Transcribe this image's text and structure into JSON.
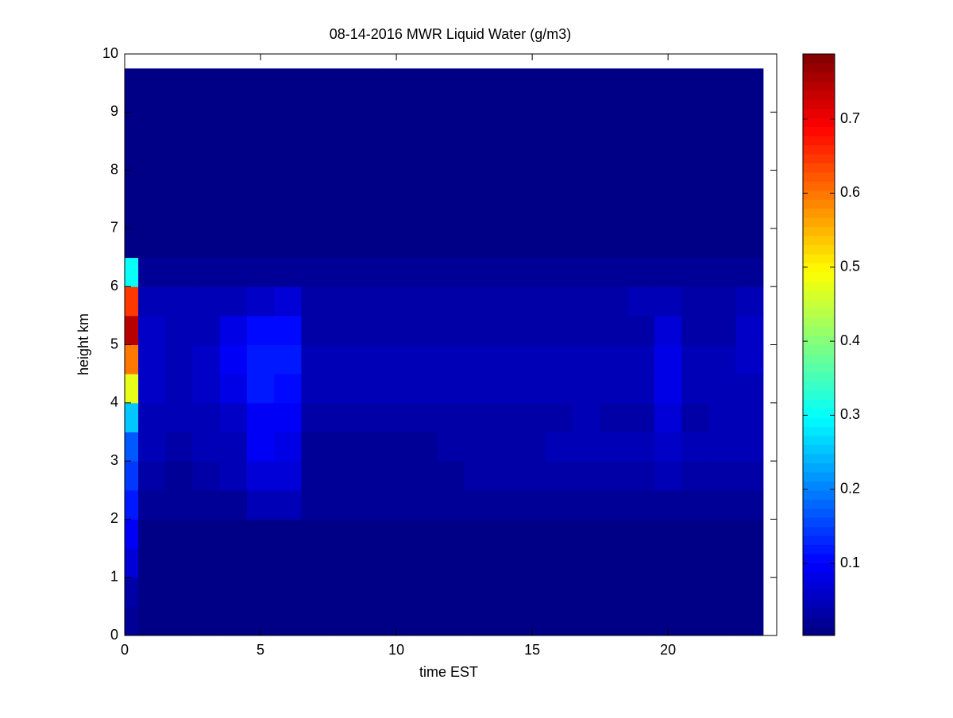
{
  "chart_data": {
    "type": "heatmap",
    "title": "08-14-2016 MWR Liquid Water (g/m3)",
    "x_label": "time EST",
    "y_label": "height km",
    "colormap": "jet",
    "x_edges": [
      0,
      0.5,
      1.5,
      2.5,
      3.5,
      4.5,
      5.5,
      6.5,
      7.5,
      8.5,
      9.5,
      10.5,
      11.5,
      12.5,
      13.5,
      14.5,
      15.5,
      16.5,
      17.5,
      18.5,
      19.5,
      20.5,
      21.5,
      22.5,
      23.5
    ],
    "y_edges": [
      0,
      0.5,
      1,
      1.5,
      2,
      2.5,
      3,
      3.5,
      4,
      4.5,
      5,
      5.5,
      6,
      6.5,
      9.75
    ],
    "values": [
      [
        0.02,
        0.01,
        0.01,
        0.01,
        0.01,
        0.01,
        0.01,
        0.01,
        0.01,
        0.01,
        0.01,
        0.01,
        0.01,
        0.01,
        0.01,
        0.01,
        0.01,
        0.01,
        0.01,
        0.01,
        0.01,
        0.01,
        0.01,
        0.01
      ],
      [
        0.03,
        0.01,
        0.01,
        0.01,
        0.01,
        0.01,
        0.01,
        0.01,
        0.01,
        0.01,
        0.01,
        0.01,
        0.01,
        0.01,
        0.01,
        0.01,
        0.01,
        0.01,
        0.01,
        0.01,
        0.01,
        0.01,
        0.01,
        0.01
      ],
      [
        0.07,
        0.01,
        0.01,
        0.01,
        0.01,
        0.01,
        0.01,
        0.01,
        0.01,
        0.01,
        0.01,
        0.01,
        0.01,
        0.01,
        0.01,
        0.01,
        0.01,
        0.01,
        0.01,
        0.01,
        0.01,
        0.01,
        0.01,
        0.01
      ],
      [
        0.09,
        0.01,
        0.01,
        0.01,
        0.01,
        0.01,
        0.01,
        0.01,
        0.01,
        0.01,
        0.01,
        0.01,
        0.01,
        0.01,
        0.01,
        0.01,
        0.01,
        0.01,
        0.01,
        0.01,
        0.01,
        0.01,
        0.01,
        0.01
      ],
      [
        0.12,
        0.015,
        0.015,
        0.015,
        0.015,
        0.04,
        0.04,
        0.015,
        0.015,
        0.015,
        0.015,
        0.015,
        0.015,
        0.015,
        0.015,
        0.015,
        0.015,
        0.015,
        0.015,
        0.015,
        0.02,
        0.015,
        0.015,
        0.015
      ],
      [
        0.14,
        0.03,
        0.025,
        0.03,
        0.04,
        0.07,
        0.07,
        0.02,
        0.02,
        0.02,
        0.02,
        0.02,
        0.02,
        0.03,
        0.03,
        0.03,
        0.035,
        0.035,
        0.035,
        0.035,
        0.04,
        0.03,
        0.03,
        0.03
      ],
      [
        0.17,
        0.04,
        0.03,
        0.04,
        0.05,
        0.09,
        0.08,
        0.025,
        0.025,
        0.025,
        0.025,
        0.025,
        0.03,
        0.03,
        0.03,
        0.03,
        0.04,
        0.04,
        0.04,
        0.04,
        0.06,
        0.04,
        0.04,
        0.04
      ],
      [
        0.25,
        0.05,
        0.04,
        0.05,
        0.06,
        0.1,
        0.09,
        0.035,
        0.035,
        0.035,
        0.035,
        0.035,
        0.035,
        0.035,
        0.035,
        0.035,
        0.035,
        0.045,
        0.035,
        0.035,
        0.07,
        0.035,
        0.045,
        0.05
      ],
      [
        0.48,
        0.06,
        0.05,
        0.055,
        0.08,
        0.12,
        0.11,
        0.05,
        0.045,
        0.045,
        0.045,
        0.045,
        0.045,
        0.05,
        0.05,
        0.05,
        0.045,
        0.045,
        0.045,
        0.045,
        0.08,
        0.05,
        0.05,
        0.05
      ],
      [
        0.6,
        0.06,
        0.05,
        0.06,
        0.09,
        0.12,
        0.12,
        0.04,
        0.04,
        0.045,
        0.05,
        0.04,
        0.04,
        0.04,
        0.04,
        0.04,
        0.05,
        0.05,
        0.04,
        0.04,
        0.08,
        0.04,
        0.04,
        0.06
      ],
      [
        0.75,
        0.06,
        0.05,
        0.05,
        0.08,
        0.11,
        0.11,
        0.035,
        0.035,
        0.035,
        0.035,
        0.035,
        0.035,
        0.035,
        0.035,
        0.035,
        0.035,
        0.035,
        0.035,
        0.035,
        0.07,
        0.035,
        0.035,
        0.06
      ],
      [
        0.65,
        0.05,
        0.04,
        0.04,
        0.05,
        0.06,
        0.07,
        0.03,
        0.03,
        0.03,
        0.03,
        0.03,
        0.03,
        0.03,
        0.03,
        0.03,
        0.03,
        0.03,
        0.03,
        0.04,
        0.05,
        0.03,
        0.03,
        0.05
      ],
      [
        0.3,
        0.025,
        0.015,
        0.015,
        0.015,
        0.015,
        0.015,
        0.015,
        0.015,
        0.015,
        0.015,
        0.015,
        0.015,
        0.015,
        0.015,
        0.015,
        0.015,
        0.015,
        0.015,
        0.015,
        0.015,
        0.015,
        0.015,
        0.015
      ],
      [
        0.01,
        0.01,
        0.01,
        0.01,
        0.01,
        0.01,
        0.01,
        0.01,
        0.01,
        0.01,
        0.01,
        0.01,
        0.01,
        0.01,
        0.01,
        0.01,
        0.01,
        0.01,
        0.01,
        0.01,
        0.01,
        0.01,
        0.01,
        0.01
      ]
    ],
    "xlim": [
      0,
      24
    ],
    "xticks": [
      0,
      5,
      10,
      15,
      20
    ],
    "ylim": [
      0,
      10
    ],
    "yticks": [
      0,
      1,
      2,
      3,
      4,
      5,
      6,
      7,
      8,
      9,
      10
    ],
    "clim": [
      0.0025,
      0.788
    ],
    "cticks": [
      0.1,
      0.2,
      0.3,
      0.4,
      0.5,
      0.6,
      0.7
    ]
  }
}
